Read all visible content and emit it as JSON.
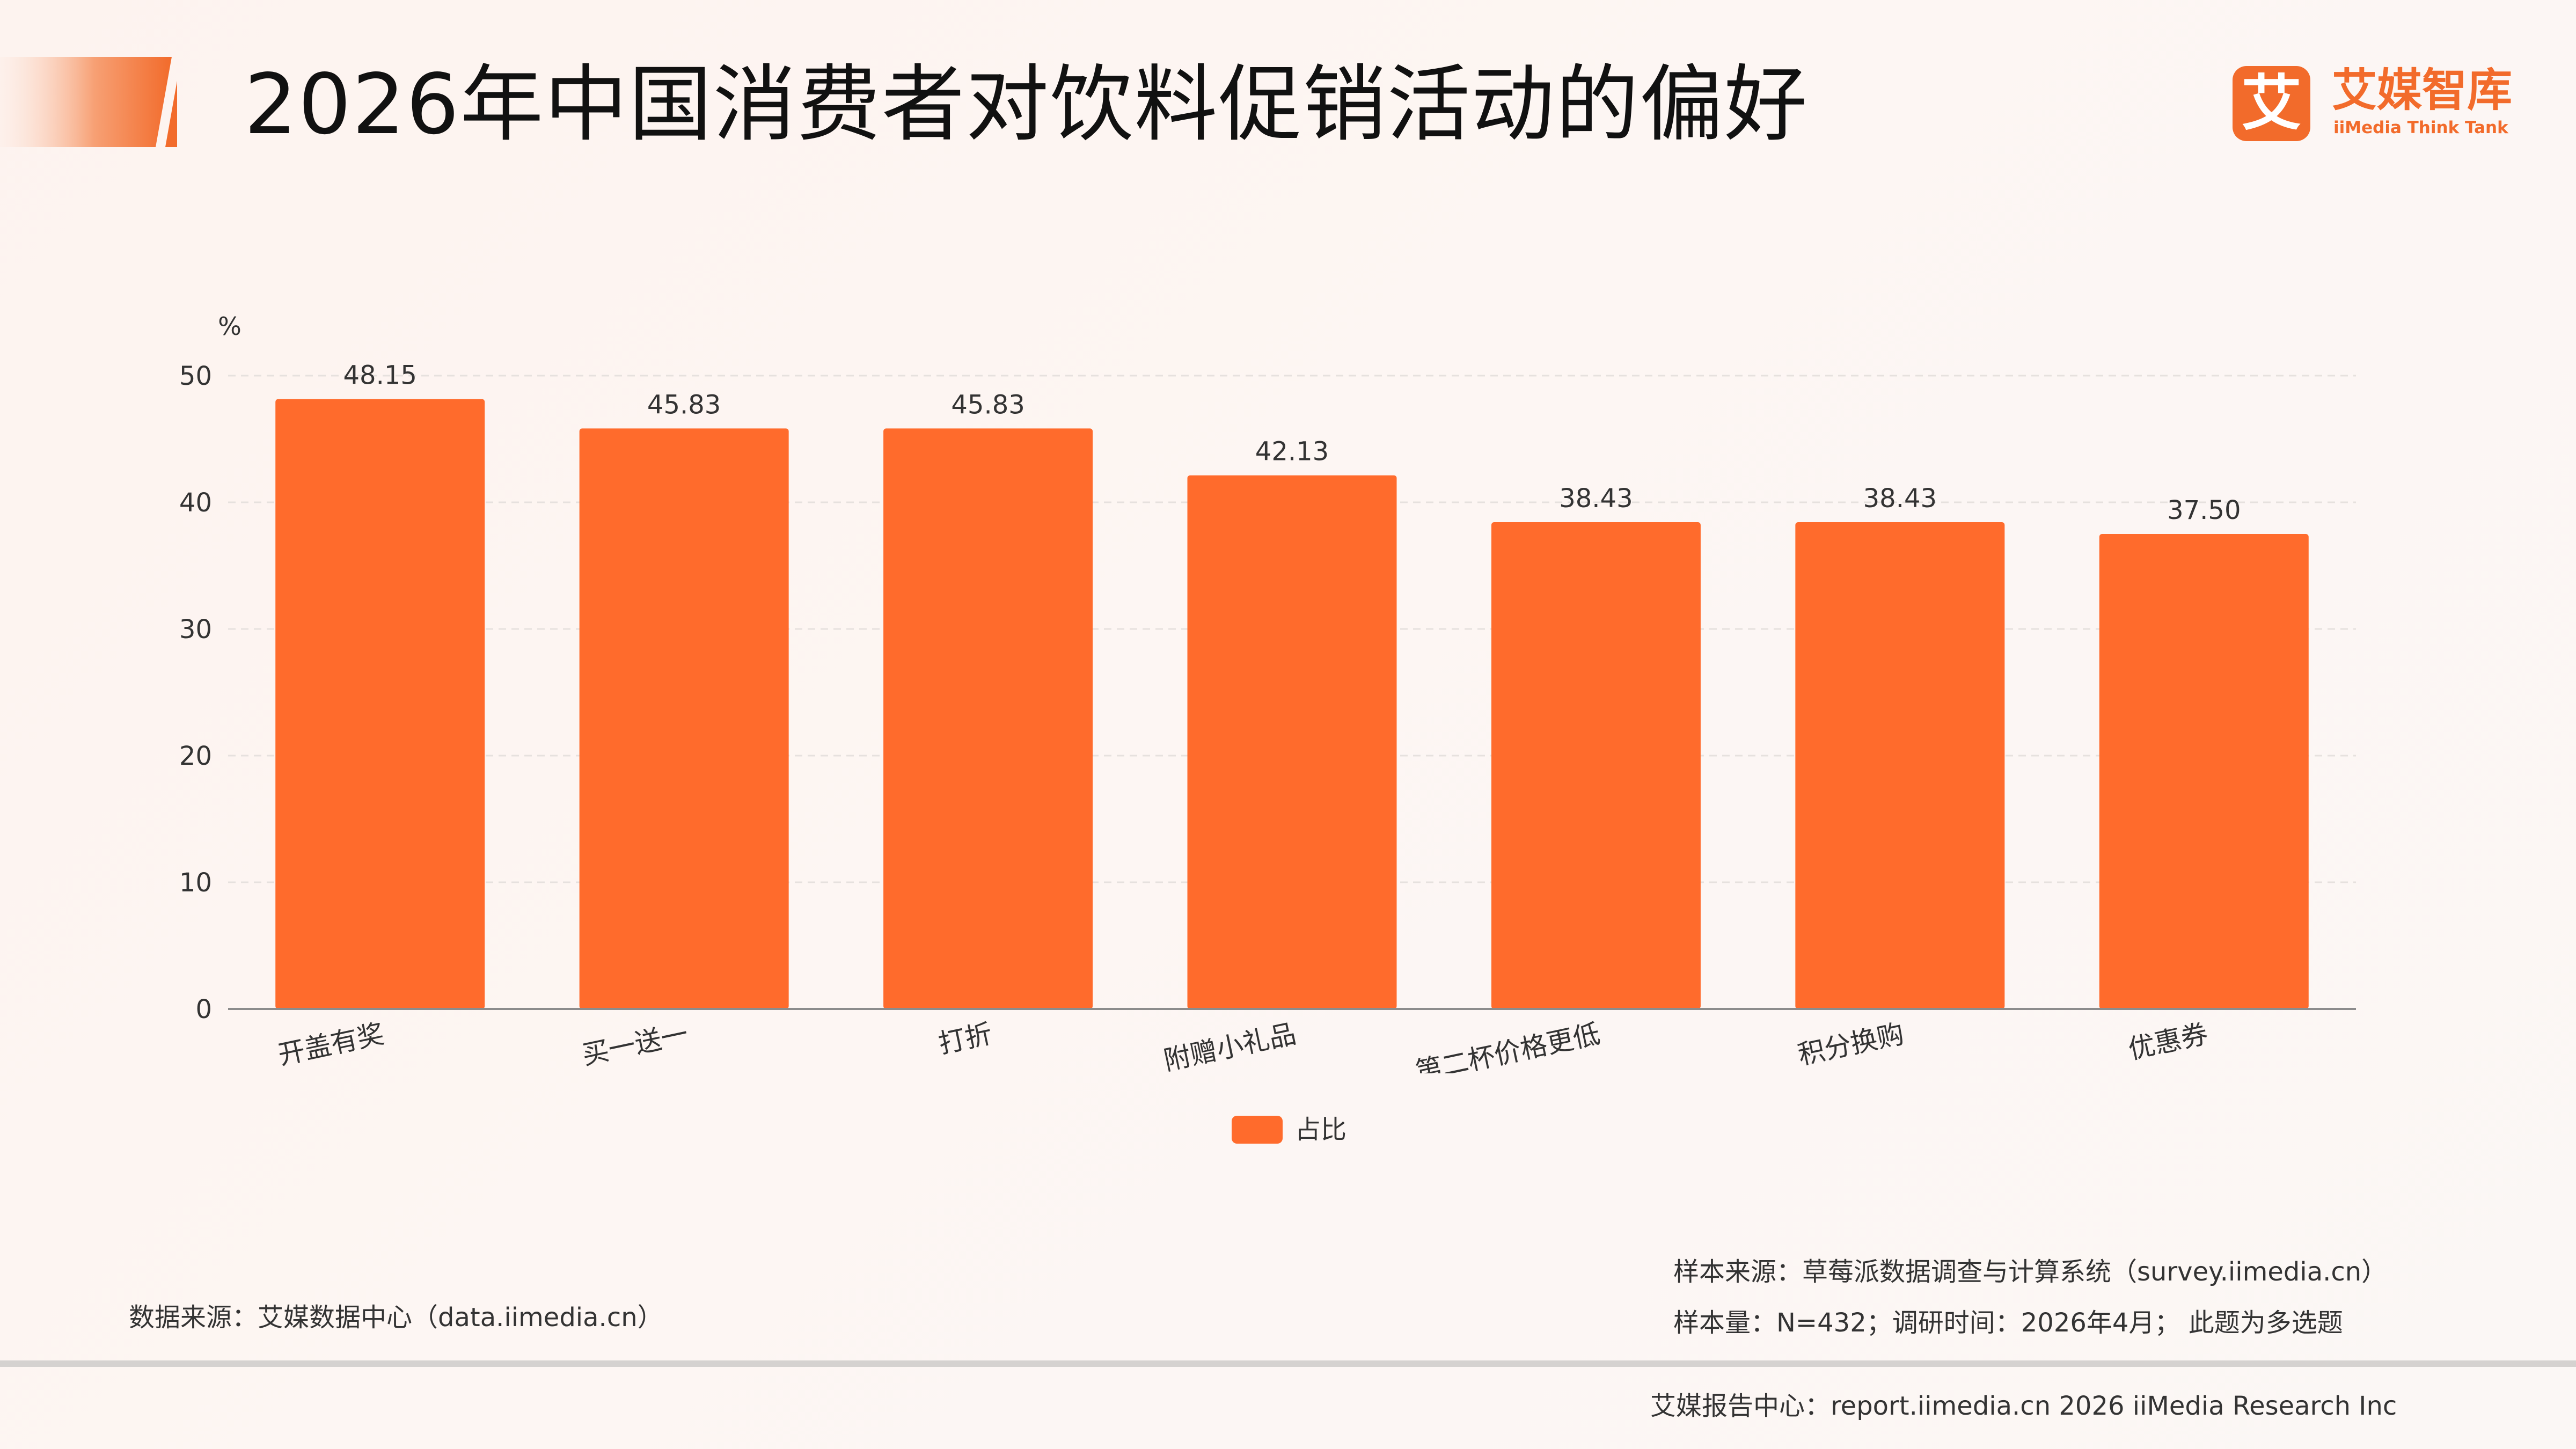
{
  "header": {
    "title": "2026年中国消费者对饮料促销活动的偏好",
    "accent_color": "#f26b2b"
  },
  "logo": {
    "mark": "艾",
    "name_cn": "艾媒智库",
    "name_en": "iiMedia Think Tank"
  },
  "chart_data": {
    "type": "bar",
    "unit_label": "%",
    "categories": [
      "开盖有奖",
      "买一送一",
      "打折",
      "附赠小礼品",
      "第二杯价格更低",
      "积分换购",
      "优惠券"
    ],
    "series": [
      {
        "name": "占比",
        "values": [
          48.15,
          45.83,
          45.83,
          42.13,
          38.43,
          38.43,
          37.5
        ],
        "color": "#ff6b2c"
      }
    ],
    "value_labels": [
      "48.15",
      "45.83",
      "45.83",
      "42.13",
      "38.43",
      "38.43",
      "37.50"
    ],
    "ylim": [
      0,
      50
    ],
    "yticks": [
      0,
      10,
      20,
      30,
      40,
      50
    ],
    "grid": true,
    "legend_position": "bottom-center"
  },
  "legend": {
    "label": "占比"
  },
  "footer": {
    "data_source": "数据来源：艾媒数据中心（data.iimedia.cn）",
    "sample_source": "样本来源：草莓派数据调查与计算系统（survey.iimedia.cn）",
    "sample_size": "样本量：N=432；调研时间：2026年4月； 此题为多选题",
    "report_center": "艾媒报告中心：report.iimedia.cn   2026 iiMedia Research Inc"
  }
}
